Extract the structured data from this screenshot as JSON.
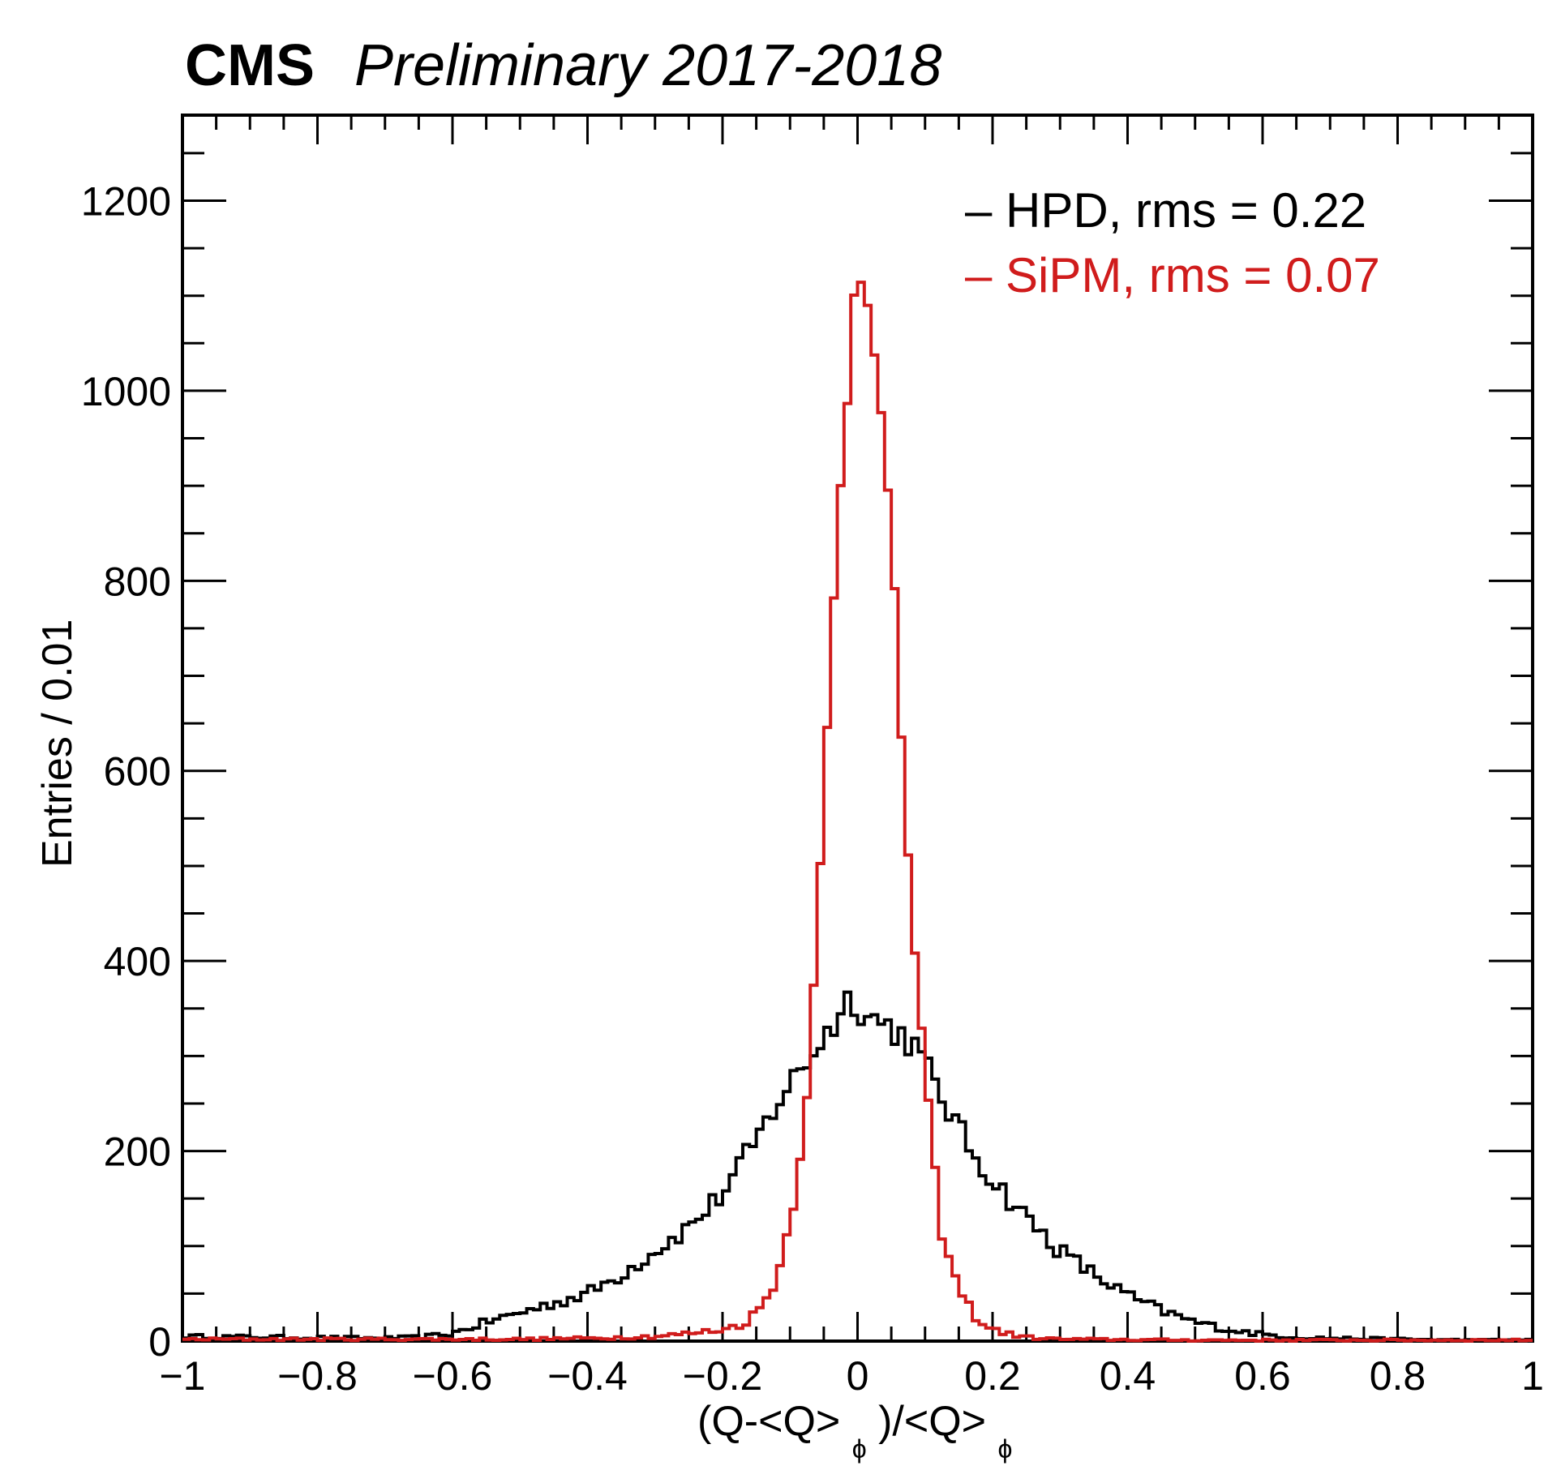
{
  "header": {
    "experiment": "CMS",
    "label": "Preliminary 2017-2018"
  },
  "legend": [
    {
      "name": "HPD",
      "text": "– HPD,  rms = 0.22",
      "color": "#000000"
    },
    {
      "name": "SiPM",
      "text": "– SiPM, rms = 0.07",
      "color": "#d01c1c"
    }
  ],
  "chart_data": {
    "type": "histogram-step",
    "title": "CMS Preliminary 2017-2018",
    "xlabel": "(Q-<Q>_φ)/<Q>_φ",
    "xlabel_parts": {
      "open": "(Q-<Q>",
      "sub1": "ϕ",
      "mid": ")/<Q>",
      "sub2": "ϕ"
    },
    "ylabel": "Entries / 0.01",
    "xlim": [
      -1,
      1
    ],
    "ylim": [
      0,
      1290
    ],
    "x_ticks": [
      -1,
      -0.8,
      -0.6,
      -0.4,
      -0.2,
      0,
      0.2,
      0.4,
      0.6,
      0.8,
      1
    ],
    "x_tick_labels": [
      "−1",
      "−0.8",
      "−0.6",
      "−0.4",
      "−0.2",
      "0",
      "0.2",
      "0.4",
      "0.6",
      "0.8",
      "1"
    ],
    "y_ticks": [
      0,
      200,
      400,
      600,
      800,
      1000,
      1200
    ],
    "y_tick_labels": [
      "0",
      "200",
      "400",
      "600",
      "800",
      "1000",
      "1200"
    ],
    "bin_width": 0.01,
    "series": [
      {
        "name": "HPD",
        "rms": 0.22,
        "color": "#000000",
        "points": [
          [
            -1,
            5
          ],
          [
            -0.7,
            3
          ],
          [
            -0.65,
            4
          ],
          [
            -0.6,
            8
          ],
          [
            -0.55,
            20
          ],
          [
            -0.5,
            30
          ],
          [
            -0.45,
            40
          ],
          [
            -0.4,
            50
          ],
          [
            -0.35,
            70
          ],
          [
            -0.3,
            95
          ],
          [
            -0.25,
            120
          ],
          [
            -0.2,
            155
          ],
          [
            -0.15,
            210
          ],
          [
            -0.12,
            250
          ],
          [
            -0.1,
            270
          ],
          [
            -0.08,
            290
          ],
          [
            -0.05,
            320
          ],
          [
            -0.03,
            340
          ],
          [
            -0.01,
            365
          ],
          [
            0.0,
            355
          ],
          [
            0.02,
            340
          ],
          [
            0.05,
            330
          ],
          [
            0.08,
            315
          ],
          [
            0.1,
            290
          ],
          [
            0.13,
            250
          ],
          [
            0.16,
            210
          ],
          [
            0.2,
            170
          ],
          [
            0.25,
            130
          ],
          [
            0.3,
            95
          ],
          [
            0.35,
            70
          ],
          [
            0.4,
            48
          ],
          [
            0.45,
            32
          ],
          [
            0.5,
            20
          ],
          [
            0.55,
            12
          ],
          [
            0.6,
            7
          ],
          [
            0.65,
            4
          ],
          [
            0.7,
            3
          ],
          [
            0.8,
            2
          ],
          [
            0.9,
            1
          ],
          [
            1.0,
            1
          ]
        ]
      },
      {
        "name": "SiPM",
        "rms": 0.07,
        "color": "#d01c1c",
        "points": [
          [
            -1,
            2
          ],
          [
            -0.5,
            2
          ],
          [
            -0.4,
            3
          ],
          [
            -0.3,
            5
          ],
          [
            -0.25,
            8
          ],
          [
            -0.2,
            12
          ],
          [
            -0.17,
            18
          ],
          [
            -0.15,
            30
          ],
          [
            -0.13,
            50
          ],
          [
            -0.11,
            90
          ],
          [
            -0.1,
            130
          ],
          [
            -0.09,
            170
          ],
          [
            -0.08,
            230
          ],
          [
            -0.07,
            310
          ],
          [
            -0.06,
            420
          ],
          [
            -0.05,
            560
          ],
          [
            -0.04,
            710
          ],
          [
            -0.03,
            840
          ],
          [
            -0.02,
            950
          ],
          [
            -0.01,
            1060
          ],
          [
            0.0,
            1150
          ],
          [
            0.01,
            1130
          ],
          [
            0.02,
            1110
          ],
          [
            0.03,
            1000
          ],
          [
            0.04,
            930
          ],
          [
            0.05,
            830
          ],
          [
            0.06,
            700
          ],
          [
            0.07,
            580
          ],
          [
            0.08,
            460
          ],
          [
            0.09,
            360
          ],
          [
            0.1,
            280
          ],
          [
            0.11,
            200
          ],
          [
            0.12,
            140
          ],
          [
            0.13,
            95
          ],
          [
            0.15,
            55
          ],
          [
            0.17,
            30
          ],
          [
            0.19,
            15
          ],
          [
            0.22,
            8
          ],
          [
            0.25,
            4
          ],
          [
            0.3,
            2
          ],
          [
            0.5,
            1
          ],
          [
            1.0,
            1
          ]
        ]
      }
    ]
  }
}
